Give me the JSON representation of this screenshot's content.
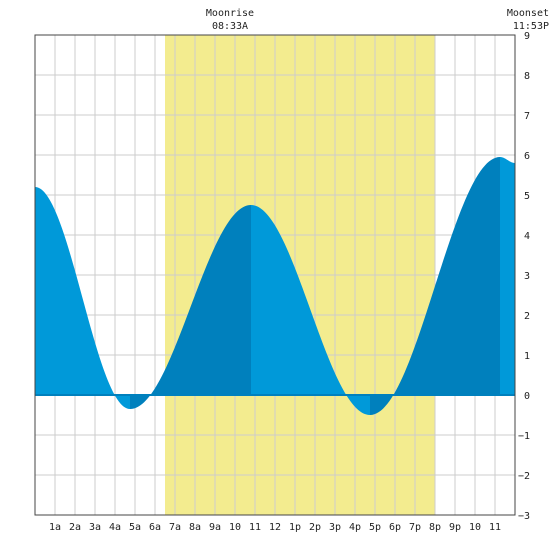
{
  "chart_data": {
    "type": "area",
    "title": "",
    "xlabel": "",
    "ylabel": "",
    "xlim": [
      0,
      24
    ],
    "ylim": [
      -3,
      9
    ],
    "grid": true,
    "x_tick_labels": [
      "1a",
      "2a",
      "3a",
      "4a",
      "5a",
      "6a",
      "7a",
      "8a",
      "9a",
      "10",
      "11",
      "12",
      "1p",
      "2p",
      "3p",
      "4p",
      "5p",
      "6p",
      "7p",
      "8p",
      "9p",
      "10",
      "11"
    ],
    "y_ticks": [
      -3,
      -2,
      -1,
      0,
      1,
      2,
      3,
      4,
      5,
      6,
      7,
      8,
      9
    ],
    "daylight": [
      6.5,
      20.0
    ],
    "moonrise": {
      "label": "Moonrise",
      "time": "08:33A"
    },
    "moonset": {
      "label": "Moonset",
      "time": "11:53P"
    },
    "tide_extremes": [
      {
        "x": 0.0,
        "y": 5.2,
        "type": "start"
      },
      {
        "x": 4.75,
        "y": -0.35,
        "type": "low"
      },
      {
        "x": 10.8,
        "y": 4.75,
        "type": "high"
      },
      {
        "x": 16.75,
        "y": -0.5,
        "type": "low"
      },
      {
        "x": 23.25,
        "y": 5.95,
        "type": "high"
      },
      {
        "x": 24.0,
        "y": 5.8,
        "type": "end"
      }
    ],
    "colors": {
      "daylight": "#f3ec8f",
      "rising": "#0080bd",
      "falling": "#0099d9",
      "grid": "#cccccc",
      "zero_line": "#0080bd"
    }
  }
}
